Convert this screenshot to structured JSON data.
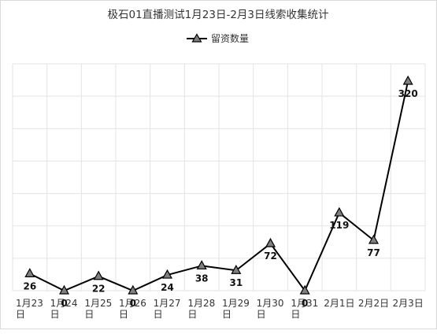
{
  "chart_data": {
    "type": "line",
    "title": "极石01直播测试1月23日-2月3日线索收集统计",
    "categories": [
      "1月23日",
      "1月24日",
      "1月25日",
      "1月26日",
      "1月27日",
      "1月28日",
      "1月29日",
      "1月30日",
      "1月31日",
      "2月1日",
      "2月2日",
      "2月3日"
    ],
    "series": [
      {
        "name": "留资数量",
        "values": [
          26,
          0,
          22,
          0,
          24,
          38,
          31,
          72,
          0,
          119,
          77,
          320
        ],
        "color": "#000000",
        "marker": "triangle",
        "marker_color": "#7f7f7f"
      }
    ],
    "ylim": [
      0,
      320
    ],
    "grid": true,
    "legend": "top-center",
    "data_labels": true,
    "y_axis_labels_shown": false
  }
}
